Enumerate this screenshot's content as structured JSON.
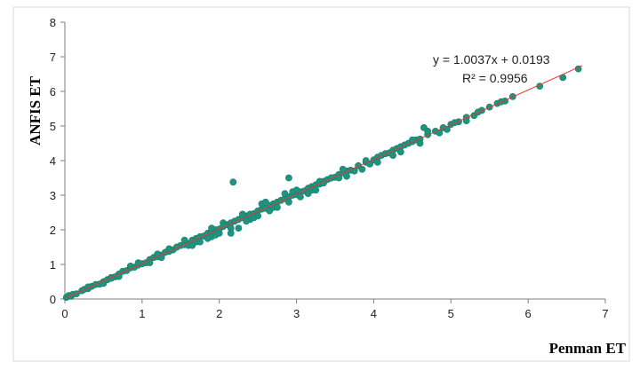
{
  "chart_data": {
    "type": "scatter",
    "xlabel": "Penman ET",
    "ylabel": "ANFIS ET",
    "xlim": [
      0,
      7
    ],
    "ylim": [
      0,
      8
    ],
    "x_ticks": [
      "0",
      "1",
      "2",
      "3",
      "4",
      "5",
      "6",
      "7"
    ],
    "y_ticks": [
      "0",
      "1",
      "2",
      "3",
      "4",
      "5",
      "6",
      "7",
      "8"
    ],
    "grid": false,
    "legend": "none",
    "trendline": {
      "equation_label": "y = 1.0037x + 0.0193",
      "r2_label": "R² = 0.9956",
      "slope": 1.0037,
      "intercept": 0.0193,
      "x_range": [
        0.0,
        6.7
      ],
      "color": "#e8382e"
    },
    "marker_color": "#1e9480",
    "points": [
      [
        0.02,
        0.05
      ],
      [
        0.05,
        0.1
      ],
      [
        0.08,
        0.08
      ],
      [
        0.1,
        0.13
      ],
      [
        0.15,
        0.15
      ],
      [
        0.22,
        0.24
      ],
      [
        0.25,
        0.28
      ],
      [
        0.3,
        0.3
      ],
      [
        0.35,
        0.37
      ],
      [
        0.4,
        0.42
      ],
      [
        0.45,
        0.43
      ],
      [
        0.5,
        0.5
      ],
      [
        0.55,
        0.56
      ],
      [
        0.6,
        0.62
      ],
      [
        0.65,
        0.64
      ],
      [
        0.7,
        0.72
      ],
      [
        0.75,
        0.8
      ],
      [
        0.8,
        0.82
      ],
      [
        0.85,
        0.9
      ],
      [
        0.9,
        0.92
      ],
      [
        0.95,
        0.98
      ],
      [
        1.0,
        1.02
      ],
      [
        1.05,
        1.05
      ],
      [
        1.1,
        1.14
      ],
      [
        1.15,
        1.2
      ],
      [
        1.2,
        1.22
      ],
      [
        1.25,
        1.27
      ],
      [
        1.3,
        1.35
      ],
      [
        1.35,
        1.38
      ],
      [
        1.4,
        1.42
      ],
      [
        1.45,
        1.5
      ],
      [
        1.5,
        1.55
      ],
      [
        1.55,
        1.57
      ],
      [
        1.6,
        1.6
      ],
      [
        1.65,
        1.7
      ],
      [
        1.7,
        1.75
      ],
      [
        1.75,
        1.8
      ],
      [
        1.8,
        1.82
      ],
      [
        1.85,
        1.9
      ],
      [
        1.9,
        1.95
      ],
      [
        1.95,
        2.0
      ],
      [
        2.0,
        2.02
      ],
      [
        2.05,
        2.1
      ],
      [
        2.1,
        2.15
      ],
      [
        2.15,
        2.2
      ],
      [
        2.2,
        2.25
      ],
      [
        2.25,
        2.3
      ],
      [
        2.3,
        2.35
      ],
      [
        2.35,
        2.4
      ],
      [
        2.4,
        2.45
      ],
      [
        2.45,
        2.47
      ],
      [
        2.5,
        2.55
      ],
      [
        2.55,
        2.6
      ],
      [
        2.6,
        2.62
      ],
      [
        2.65,
        2.7
      ],
      [
        2.7,
        2.75
      ],
      [
        2.75,
        2.8
      ],
      [
        2.8,
        2.85
      ],
      [
        2.85,
        2.9
      ],
      [
        2.9,
        2.95
      ],
      [
        2.95,
        3.0
      ],
      [
        3.0,
        3.02
      ],
      [
        3.05,
        3.1
      ],
      [
        3.1,
        3.12
      ],
      [
        3.15,
        3.2
      ],
      [
        3.2,
        3.25
      ],
      [
        3.25,
        3.3
      ],
      [
        3.3,
        3.32
      ],
      [
        3.35,
        3.4
      ],
      [
        3.4,
        3.45
      ],
      [
        3.45,
        3.5
      ],
      [
        3.5,
        3.52
      ],
      [
        3.55,
        3.6
      ],
      [
        3.6,
        3.65
      ],
      [
        3.65,
        3.7
      ],
      [
        3.7,
        3.72
      ],
      [
        3.8,
        3.85
      ],
      [
        3.9,
        3.95
      ],
      [
        4.0,
        4.02
      ],
      [
        4.05,
        4.1
      ],
      [
        4.1,
        4.15
      ],
      [
        4.15,
        4.2
      ],
      [
        4.2,
        4.22
      ],
      [
        4.25,
        4.3
      ],
      [
        4.3,
        4.35
      ],
      [
        4.35,
        4.4
      ],
      [
        4.4,
        4.45
      ],
      [
        4.45,
        4.5
      ],
      [
        4.5,
        4.55
      ],
      [
        4.55,
        4.6
      ],
      [
        4.6,
        4.62
      ],
      [
        4.7,
        4.75
      ],
      [
        4.8,
        4.85
      ],
      [
        4.9,
        4.95
      ],
      [
        5.0,
        5.05
      ],
      [
        5.1,
        5.12
      ],
      [
        5.2,
        5.25
      ],
      [
        5.3,
        5.3
      ],
      [
        5.4,
        5.45
      ],
      [
        5.5,
        5.55
      ],
      [
        5.6,
        5.65
      ],
      [
        5.7,
        5.72
      ],
      [
        5.8,
        5.85
      ],
      [
        6.15,
        6.15
      ],
      [
        6.45,
        6.4
      ],
      [
        6.65,
        6.65
      ],
      [
        0.85,
        0.95
      ],
      [
        1.2,
        1.3
      ],
      [
        1.6,
        1.55
      ],
      [
        1.9,
        1.8
      ],
      [
        2.05,
        2.2
      ],
      [
        2.4,
        2.3
      ],
      [
        2.7,
        2.65
      ],
      [
        2.95,
        3.1
      ],
      [
        3.2,
        3.15
      ],
      [
        3.55,
        3.5
      ],
      [
        3.75,
        3.7
      ],
      [
        4.25,
        4.15
      ],
      [
        4.5,
        4.6
      ],
      [
        5.2,
        5.15
      ],
      [
        2.3,
        2.45
      ],
      [
        1.35,
        1.45
      ],
      [
        2.55,
        2.75
      ],
      [
        3.0,
        3.15
      ],
      [
        3.3,
        3.4
      ],
      [
        1.7,
        1.65
      ],
      [
        0.6,
        0.6
      ],
      [
        0.95,
        1.05
      ],
      [
        2.18,
        3.38
      ],
      [
        2.9,
        3.5
      ],
      [
        3.45,
        3.5
      ],
      [
        3.6,
        3.75
      ],
      [
        4.65,
        4.95
      ],
      [
        5.05,
        5.1
      ],
      [
        2.05,
        2.1
      ],
      [
        2.6,
        2.8
      ],
      [
        3.35,
        3.35
      ],
      [
        3.25,
        3.15
      ],
      [
        2.85,
        3.05
      ],
      [
        4.05,
        3.95
      ],
      [
        4.7,
        4.85
      ],
      [
        4.95,
        4.9
      ],
      [
        2.15,
        2.05
      ],
      [
        1.9,
        2.05
      ],
      [
        2.15,
        1.9
      ],
      [
        2.25,
        2.05
      ],
      [
        1.55,
        1.7
      ],
      [
        1.65,
        1.55
      ],
      [
        1.75,
        1.65
      ],
      [
        1.95,
        1.85
      ],
      [
        2.35,
        2.25
      ],
      [
        2.45,
        2.35
      ],
      [
        2.65,
        2.55
      ],
      [
        2.75,
        2.65
      ],
      [
        1.85,
        1.75
      ],
      [
        1.45,
        1.5
      ],
      [
        1.1,
        1.05
      ],
      [
        1.25,
        1.2
      ],
      [
        0.5,
        0.45
      ],
      [
        0.3,
        0.35
      ],
      [
        0.7,
        0.65
      ],
      [
        3.85,
        3.75
      ],
      [
        4.35,
        4.25
      ],
      [
        4.6,
        4.5
      ],
      [
        4.85,
        4.8
      ],
      [
        5.35,
        5.4
      ],
      [
        5.65,
        5.7
      ],
      [
        3.05,
        2.95
      ],
      [
        3.15,
        3.05
      ],
      [
        3.65,
        3.55
      ],
      [
        3.9,
        4.0
      ],
      [
        3.95,
        3.9
      ],
      [
        2.5,
        2.4
      ],
      [
        2.0,
        1.9
      ],
      [
        2.9,
        2.8
      ]
    ]
  }
}
